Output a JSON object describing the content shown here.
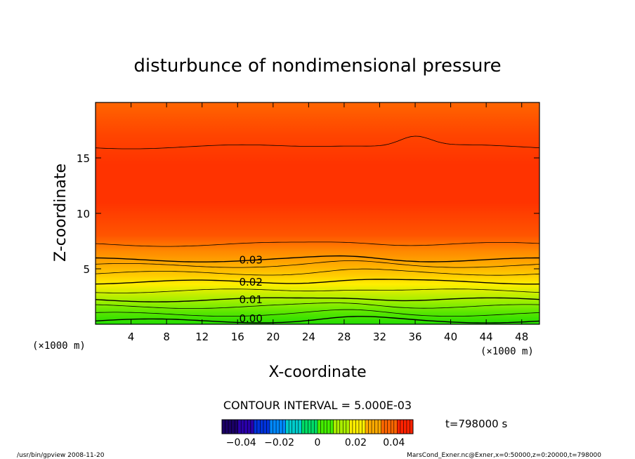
{
  "chart_data": {
    "type": "contour",
    "title": "disturbunce of nondimensional pressure",
    "xlabel": "X-coordinate",
    "ylabel": "Z-coordinate",
    "x_unit_left": "(×1000 m)",
    "x_unit_right": "(×1000 m)",
    "xlim": [
      0,
      50
    ],
    "ylim": [
      0,
      20
    ],
    "xticks": [
      4,
      8,
      12,
      16,
      20,
      24,
      28,
      32,
      36,
      40,
      44,
      48
    ],
    "yticks": [
      5,
      10,
      15
    ],
    "contour_labels": [
      {
        "text": "0.03",
        "x": 17.5,
        "z": 5.8
      },
      {
        "text": "0.02",
        "x": 17.5,
        "z": 3.8
      },
      {
        "text": "0.01",
        "x": 17.5,
        "z": 2.2
      },
      {
        "text": "0.00",
        "x": 17.5,
        "z": 0.5
      }
    ],
    "contour_interval_text": "CONTOUR INTERVAL = 5.000E-03",
    "colorbar": {
      "min": -0.05,
      "max": 0.05,
      "tick_values": [
        -0.04,
        -0.02,
        0,
        0.02,
        0.04
      ],
      "tick_labels": [
        "−0.04",
        "−0.02",
        "0",
        "0.02",
        "0.04"
      ],
      "colors": [
        "#1a0066",
        "#2a00aa",
        "#0033dd",
        "#0088ff",
        "#00cccc",
        "#00dd66",
        "#44ee00",
        "#aaee00",
        "#ffee00",
        "#ffaa00",
        "#ff6600",
        "#ff2200"
      ]
    },
    "time_label": "t=798000 s"
  },
  "footer": {
    "left": "/usr/bin/gpview   2008-11-20",
    "right": "MarsCond_Exner.nc@Exner,x=0:50000,z=0:20000,t=798000"
  }
}
